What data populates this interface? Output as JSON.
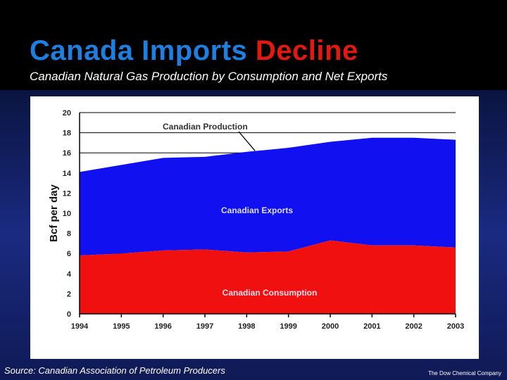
{
  "slide": {
    "title_part1": "Canada Imports",
    "title_part2": "Decline",
    "subtitle": "Canadian Natural Gas Production by Consumption and Net Exports",
    "source": "Source: Canadian Association of Petroleum Producers",
    "company": "The Dow Chemical Company"
  },
  "colors": {
    "title_blue": "#1e7fe0",
    "title_red": "#e01a10",
    "exports_fill": "#1010f0",
    "consumption_fill": "#f01010"
  },
  "chart_data": {
    "type": "area",
    "stacked": true,
    "x": [
      "1994",
      "1995",
      "1996",
      "1997",
      "1998",
      "1999",
      "2000",
      "2001",
      "2002",
      "2003"
    ],
    "series": [
      {
        "name": "Canadian Consumption",
        "values": [
          5.8,
          6.0,
          6.3,
          6.4,
          6.1,
          6.2,
          7.3,
          6.8,
          6.8,
          6.6
        ]
      },
      {
        "name": "Canadian Exports",
        "values": [
          8.3,
          8.8,
          9.2,
          9.2,
          10.0,
          10.3,
          9.8,
          10.7,
          10.7,
          10.7
        ]
      }
    ],
    "production_total": [
      14.1,
      14.8,
      15.5,
      15.6,
      16.1,
      16.5,
      17.1,
      17.5,
      17.5,
      17.3
    ],
    "ylabel": "Bcf per day",
    "xlabel": "",
    "ylim": [
      0,
      20
    ],
    "yticks": [
      "0",
      "2",
      "4",
      "6",
      "8",
      "10",
      "12",
      "14",
      "16",
      "18",
      "20"
    ],
    "annotations": {
      "production": "Canadian Production",
      "exports": "Canadian Exports",
      "consumption": "Canadian Consumption"
    },
    "grid": true
  }
}
